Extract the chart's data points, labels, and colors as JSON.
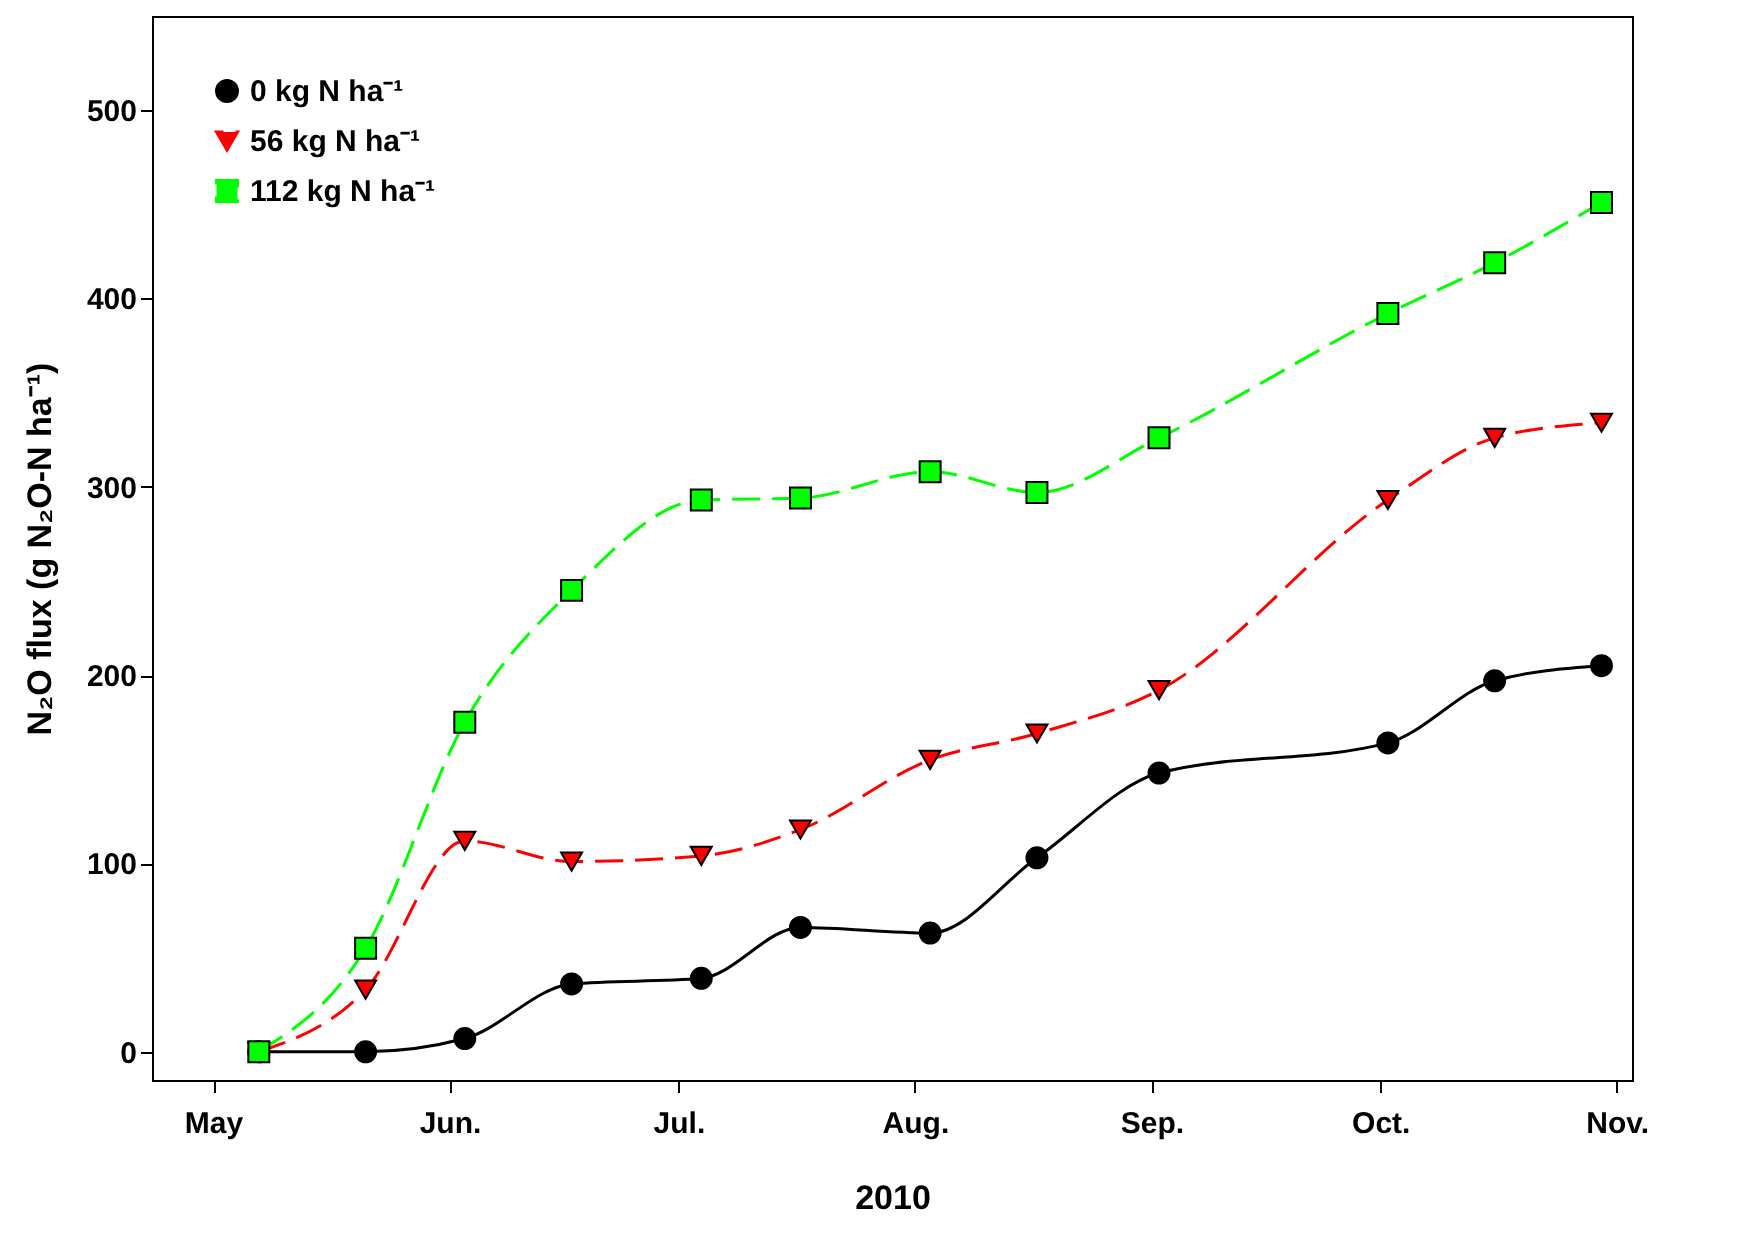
{
  "chart_data": {
    "type": "line",
    "xlabel": "2010",
    "ylabel": "N₂O flux (g N₂O-N ha⁻¹)",
    "x": [
      "2010-05-07",
      "2010-05-21",
      "2010-06-03",
      "2010-06-17",
      "2010-07-04",
      "2010-07-17",
      "2010-08-03",
      "2010-08-17",
      "2010-09-02",
      "2010-10-02",
      "2010-10-16",
      "2010-10-30"
    ],
    "series": [
      {
        "name": "0 kg N ha⁻¹",
        "color": "#000000",
        "marker": "circle",
        "line_style": "solid",
        "values": [
          0,
          0,
          7,
          36,
          39,
          66,
          63,
          103,
          148,
          164,
          197,
          205
        ]
      },
      {
        "name": "56 kg N ha⁻¹",
        "color": "#ff0000",
        "marker": "triangle",
        "line_style": "dashed",
        "values": [
          0,
          33,
          112,
          101,
          104,
          118,
          155,
          169,
          192,
          293,
          326,
          334
        ]
      },
      {
        "name": "112 kg N ha⁻¹",
        "color": "#00ff00",
        "marker": "square",
        "line_style": "dashed",
        "values": [
          0,
          55,
          175,
          245,
          293,
          294,
          308,
          297,
          326,
          392,
          419,
          451
        ]
      }
    ],
    "xlim": [
      "2010-04-23",
      "2010-11-03"
    ],
    "xticks": [
      {
        "value": "2010-05-01",
        "label": "May"
      },
      {
        "value": "2010-06-01",
        "label": "Jun."
      },
      {
        "value": "2010-07-01",
        "label": "Jul."
      },
      {
        "value": "2010-08-01",
        "label": "Aug."
      },
      {
        "value": "2010-09-01",
        "label": "Sep."
      },
      {
        "value": "2010-10-01",
        "label": "Oct."
      },
      {
        "value": "2010-11-01",
        "label": "Nov."
      }
    ],
    "ylim": [
      -15,
      550
    ],
    "yticks": [
      0,
      100,
      200,
      300,
      400,
      500
    ],
    "grid": false,
    "legend": "top left"
  }
}
